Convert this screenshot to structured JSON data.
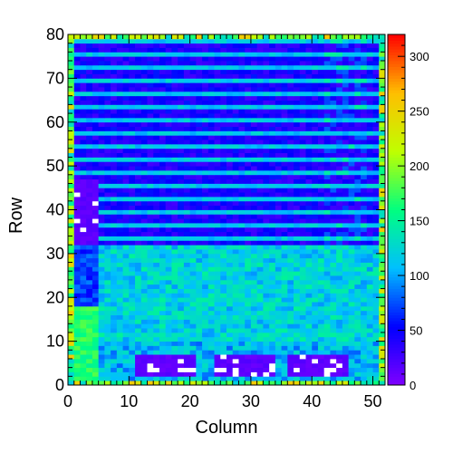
{
  "chart_data": {
    "type": "heatmap",
    "title": "",
    "xlabel": "Column",
    "ylabel": "Row",
    "xlim": [
      0,
      52
    ],
    "ylim": [
      0,
      80
    ],
    "x_ticks": [
      0,
      10,
      20,
      30,
      40,
      50
    ],
    "y_ticks": [
      0,
      10,
      20,
      30,
      40,
      50,
      60,
      70,
      80
    ],
    "color_scale": {
      "min": 0,
      "max": 320,
      "ticks": [
        0,
        50,
        100,
        150,
        200,
        250,
        300
      ],
      "colors": [
        "#8000ff",
        "#0000ff",
        "#00bfff",
        "#00ff80",
        "#bfff00",
        "#ffbf00",
        "#ff0000"
      ]
    },
    "n_columns": 52,
    "n_rows": 80,
    "empty_color": "#ffffff",
    "regions": [
      {
        "label": "lower block (rows 0-31)",
        "typical_value": 115
      },
      {
        "label": "upper block (rows 32-80), alternating row bands",
        "typical_value": 60
      },
      {
        "label": "bright left strip (columns 1-4, rows 0-17)",
        "typical_value": 165
      },
      {
        "label": "low pads (rows 2-6; columns 11-20, 24-33, 36-45)",
        "typical_value": 5
      },
      {
        "label": "low patch (columns 1-4, rows 32-46)",
        "typical_value": 10
      }
    ]
  }
}
